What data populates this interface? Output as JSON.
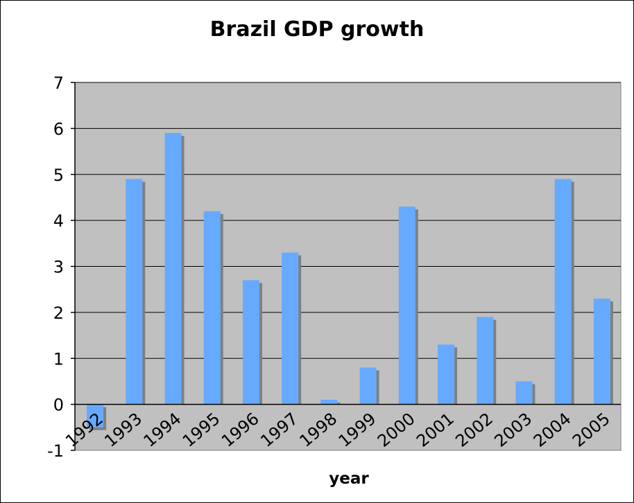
{
  "chart_data": {
    "type": "bar",
    "title": "Brazil GDP growth",
    "xlabel": "year",
    "ylabel": "",
    "categories": [
      "1992",
      "1993",
      "1994",
      "1995",
      "1996",
      "1997",
      "1998",
      "1999",
      "2000",
      "2001",
      "2002",
      "2003",
      "2004",
      "2005"
    ],
    "values": [
      -0.5,
      4.9,
      5.9,
      4.2,
      2.7,
      3.3,
      0.1,
      0.8,
      4.3,
      1.3,
      1.9,
      0.5,
      4.9,
      2.3
    ],
    "ylim": [
      -1,
      7
    ],
    "yticks": [
      "-1",
      "0",
      "1",
      "2",
      "3",
      "4",
      "5",
      "6",
      "7"
    ],
    "grid": true,
    "legend": "none",
    "colors": {
      "bar": "#66aaff",
      "bar_shadow": "#808080",
      "plot_background": "#c0c0c0",
      "gridline": "#000000"
    }
  }
}
